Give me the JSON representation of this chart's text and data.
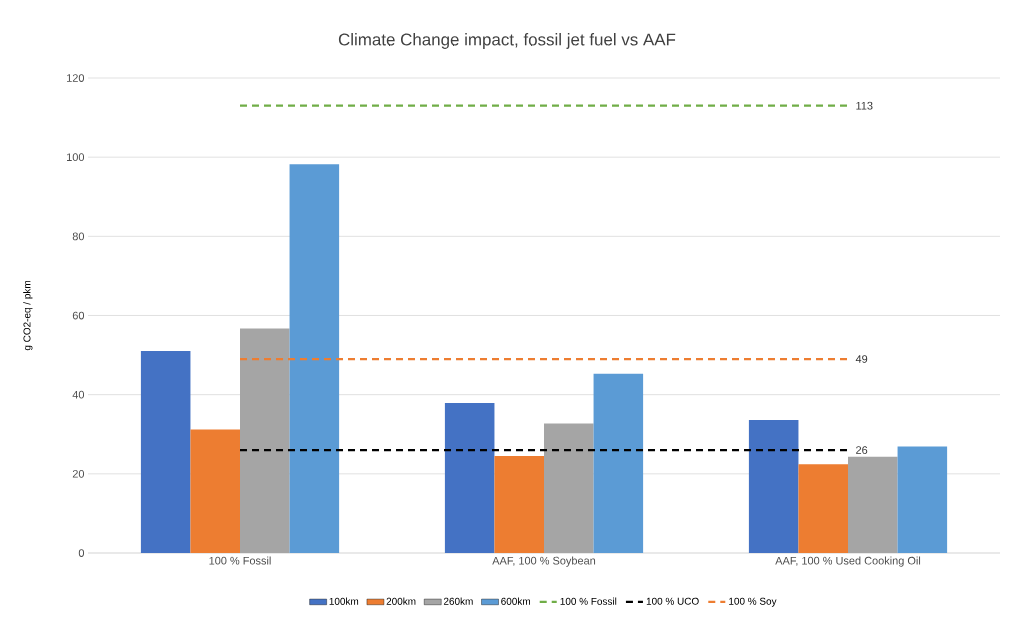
{
  "chart_data": {
    "type": "bar",
    "title": "Climate Change impact, fossil jet fuel vs AAF",
    "ylabel": "g CO2-eq / pkm",
    "categories": [
      "100 % Fossil",
      "AAF, 100 % Soybean",
      "AAF, 100 % Used Cooking Oil"
    ],
    "series": [
      {
        "name": "100km",
        "color": "#4472c4",
        "values": [
          51.0,
          37.9,
          33.6
        ]
      },
      {
        "name": "200km",
        "color": "#ed7d31",
        "values": [
          31.2,
          24.5,
          22.4
        ]
      },
      {
        "name": "260km",
        "color": "#a5a5a5",
        "values": [
          56.7,
          32.7,
          24.3
        ]
      },
      {
        "name": "600km",
        "color": "#5b9bd5",
        "values": [
          98.2,
          45.3,
          26.9
        ]
      },
      {
        "name": "100 % Fossil",
        "type": "line",
        "line_style": "dashed",
        "color": "#70ad47",
        "values": [
          113,
          113,
          113
        ],
        "value_labels": [
          null,
          null,
          "113"
        ]
      },
      {
        "name": "100 % UCO",
        "type": "line",
        "line_style": "dashed",
        "color": "#000000",
        "values": [
          26,
          26,
          26
        ],
        "value_labels": [
          null,
          null,
          "26"
        ]
      },
      {
        "name": "100 % Soy",
        "type": "line",
        "line_style": "dashed",
        "color": "#ed7d31",
        "values": [
          49,
          49,
          49
        ],
        "value_labels": [
          null,
          null,
          "49"
        ]
      }
    ],
    "ylim": [
      0,
      120
    ],
    "yticks": [
      0,
      20,
      40,
      60,
      80,
      100,
      120
    ],
    "grid": "y",
    "legend": "bottom"
  }
}
